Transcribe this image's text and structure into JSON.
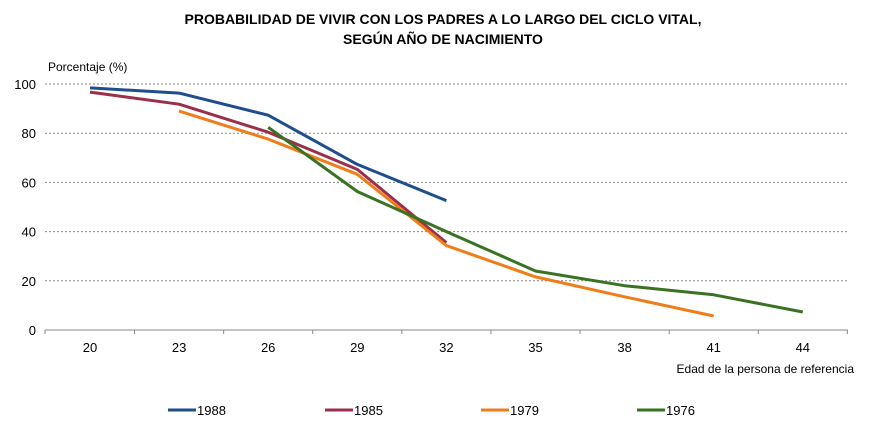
{
  "chart_data": {
    "type": "line",
    "title": [
      "PROBABILIDAD DE VIVIR CON LOS PADRES A LO LARGO DEL CICLO VITAL,",
      "SEGÚN AÑO DE NACIMIENTO"
    ],
    "ylabel": "Porcentaje (%)",
    "xlabel": "Edad de la persona de referencia",
    "categories": [
      "20",
      "23",
      "26",
      "29",
      "32",
      "35",
      "38",
      "41",
      "44"
    ],
    "ylim": [
      0,
      100
    ],
    "yticks": [
      0,
      20,
      40,
      60,
      80,
      100
    ],
    "grid": "horizontal dotted",
    "legend": "bottom",
    "series": [
      {
        "name": "1988",
        "color": "#1f4e8c",
        "values": [
          98.4,
          96.3,
          87.3,
          67.3,
          52.6,
          null,
          null,
          null,
          null
        ]
      },
      {
        "name": "1985",
        "color": "#9b2f4a",
        "values": [
          96.7,
          91.8,
          80.4,
          65.3,
          35.5,
          null,
          null,
          null,
          null
        ]
      },
      {
        "name": "1979",
        "color": "#ee7d1a",
        "values": [
          null,
          89,
          77.6,
          63.3,
          34.3,
          21.6,
          13.5,
          5.7,
          null
        ]
      },
      {
        "name": "1976",
        "color": "#3a7223",
        "values": [
          null,
          null,
          82.4,
          56.3,
          40,
          24,
          18,
          14.3,
          7.3
        ]
      }
    ]
  }
}
